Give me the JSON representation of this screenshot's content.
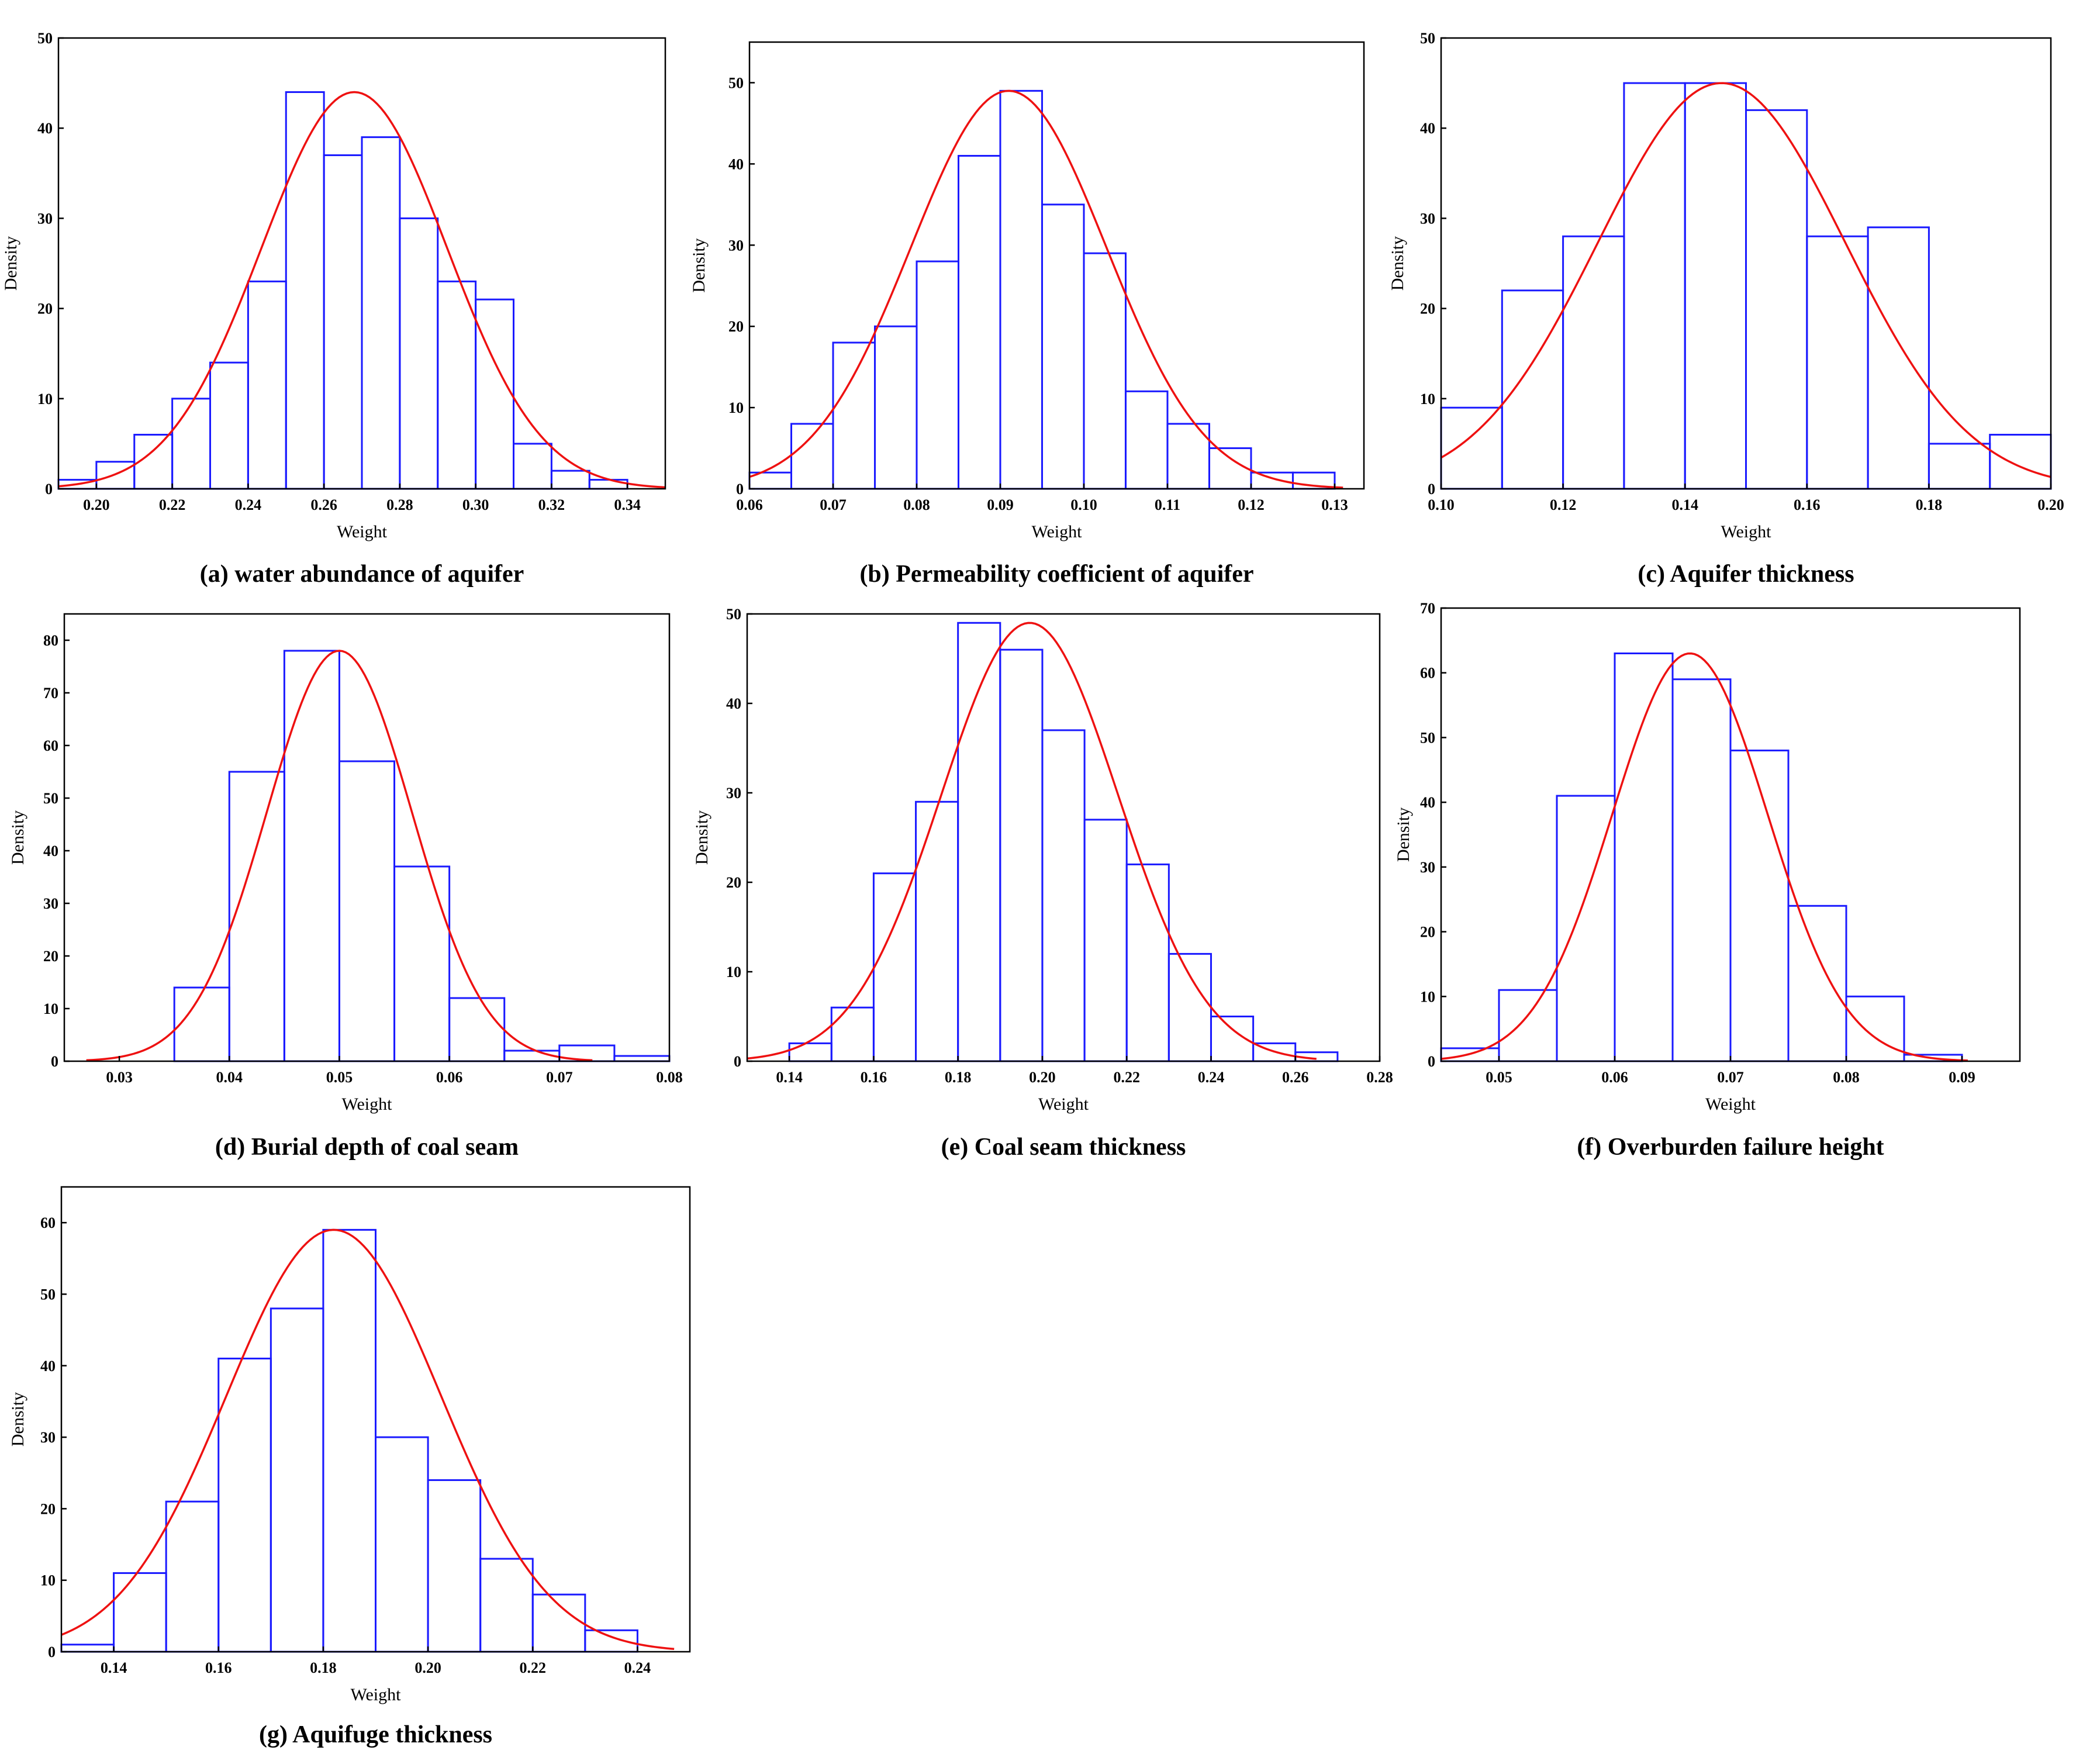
{
  "figure": {
    "x_label": "Weight",
    "y_label": "Density"
  },
  "chart_data": [
    {
      "id": "a",
      "type": "bar",
      "title": "(a) water abundance of aquifer",
      "xlabel": "Weight",
      "ylabel": "Density",
      "xlim": [
        0.19,
        0.35
      ],
      "ylim": [
        0,
        50
      ],
      "xticks": [
        0.2,
        0.22,
        0.24,
        0.26,
        0.28,
        0.3,
        0.32,
        0.34
      ],
      "xtick_labels": [
        "0.20",
        "0.22",
        "0.24",
        "0.26",
        "0.28",
        "0.30",
        "0.32",
        "0.34"
      ],
      "yticks": [
        0,
        10,
        20,
        30,
        40,
        50
      ],
      "ytick_labels": [
        "0",
        "10",
        "20",
        "30",
        "40",
        "50"
      ],
      "bin_start": 0.19,
      "bin_width": 0.01,
      "values": [
        1,
        3,
        6,
        10,
        14,
        23,
        44,
        37,
        39,
        30,
        23,
        21,
        5,
        2,
        1
      ],
      "curve": {
        "mean": 0.268,
        "sd": 0.0245,
        "peak": 44,
        "from": 0.19,
        "to": 0.35
      }
    },
    {
      "id": "b",
      "type": "bar",
      "title": "(b) Permeability coefficient of aquifer",
      "xlabel": "Weight",
      "ylabel": "Density",
      "xlim": [
        0.06,
        0.1335
      ],
      "ylim": [
        0,
        55
      ],
      "xticks": [
        0.06,
        0.07,
        0.08,
        0.09,
        0.1,
        0.11,
        0.12,
        0.13
      ],
      "xtick_labels": [
        "0.06",
        "0.07",
        "0.08",
        "0.09",
        "0.10",
        "0.11",
        "0.12",
        "0.13"
      ],
      "yticks": [
        0,
        10,
        20,
        30,
        40,
        50
      ],
      "ytick_labels": [
        "0",
        "10",
        "20",
        "30",
        "40",
        "50"
      ],
      "bin_start": 0.06,
      "bin_width": 0.005,
      "values": [
        2,
        8,
        18,
        20,
        28,
        41,
        49,
        35,
        29,
        12,
        8,
        5,
        2,
        2
      ],
      "curve": {
        "mean": 0.091,
        "sd": 0.0117,
        "peak": 49,
        "from": 0.06,
        "to": 0.131
      }
    },
    {
      "id": "c",
      "type": "bar",
      "title": "(c) Aquifer thickness",
      "xlabel": "Weight",
      "ylabel": "Density",
      "xlim": [
        0.1,
        0.2
      ],
      "ylim": [
        0,
        50
      ],
      "xticks": [
        0.1,
        0.12,
        0.14,
        0.16,
        0.18,
        0.2
      ],
      "xtick_labels": [
        "0.10",
        "0.12",
        "0.14",
        "0.16",
        "0.18",
        "0.20"
      ],
      "yticks": [
        0,
        10,
        20,
        30,
        40,
        50
      ],
      "ytick_labels": [
        "0",
        "10",
        "20",
        "30",
        "40",
        "50"
      ],
      "bin_start": 0.1,
      "bin_width": 0.01,
      "values": [
        9,
        22,
        28,
        45,
        45,
        42,
        28,
        29,
        5,
        6
      ],
      "curve": {
        "mean": 0.146,
        "sd": 0.0203,
        "peak": 45,
        "from": 0.1,
        "to": 0.2
      }
    },
    {
      "id": "d",
      "type": "bar",
      "title": "(d) Burial depth of coal seam",
      "xlabel": "Weight",
      "ylabel": "Density",
      "xlim": [
        0.025,
        0.08
      ],
      "ylim": [
        0,
        85
      ],
      "xticks": [
        0.03,
        0.04,
        0.05,
        0.06,
        0.07,
        0.08
      ],
      "xtick_labels": [
        "0.03",
        "0.04",
        "0.05",
        "0.06",
        "0.07",
        "0.08"
      ],
      "yticks": [
        0,
        10,
        20,
        30,
        40,
        50,
        60,
        70,
        80
      ],
      "ytick_labels": [
        "0",
        "10",
        "20",
        "30",
        "40",
        "50",
        "60",
        "70",
        "80"
      ],
      "bin_start": 0.035,
      "bin_width": 0.005,
      "values": [
        14,
        55,
        78,
        57,
        37,
        12,
        2,
        3,
        1
      ],
      "curve": {
        "mean": 0.05,
        "sd": 0.0066,
        "peak": 78,
        "from": 0.027,
        "to": 0.073
      }
    },
    {
      "id": "e",
      "type": "bar",
      "title": "(e) Coal seam thickness",
      "xlabel": "Weight",
      "ylabel": "Density",
      "xlim": [
        0.13,
        0.28
      ],
      "ylim": [
        0,
        50
      ],
      "xticks": [
        0.14,
        0.16,
        0.18,
        0.2,
        0.22,
        0.24,
        0.26,
        0.28
      ],
      "xtick_labels": [
        "0.14",
        "0.16",
        "0.18",
        "0.20",
        "0.22",
        "0.24",
        "0.26",
        "0.28"
      ],
      "yticks": [
        0,
        10,
        20,
        30,
        40,
        50
      ],
      "ytick_labels": [
        "0",
        "10",
        "20",
        "30",
        "40",
        "50"
      ],
      "bin_start": 0.14,
      "bin_width": 0.01,
      "values": [
        2,
        6,
        21,
        29,
        49,
        46,
        37,
        27,
        22,
        12,
        5,
        2,
        1
      ],
      "curve": {
        "mean": 0.197,
        "sd": 0.021,
        "peak": 49,
        "from": 0.13,
        "to": 0.265
      }
    },
    {
      "id": "f",
      "type": "bar",
      "title": "(f) Overburden failure height",
      "xlabel": "Weight",
      "ylabel": "Density",
      "xlim": [
        0.045,
        0.095
      ],
      "ylim": [
        0,
        70
      ],
      "xticks": [
        0.05,
        0.06,
        0.07,
        0.08,
        0.09
      ],
      "xtick_labels": [
        "0.05",
        "0.06",
        "0.07",
        "0.08",
        "0.09"
      ],
      "yticks": [
        0,
        10,
        20,
        30,
        40,
        50,
        60,
        70
      ],
      "ytick_labels": [
        "0",
        "10",
        "20",
        "30",
        "40",
        "50",
        "60",
        "70"
      ],
      "bin_start": 0.045,
      "bin_width": 0.005,
      "values": [
        2,
        11,
        41,
        63,
        59,
        48,
        24,
        10,
        1
      ],
      "curve": {
        "mean": 0.0665,
        "sd": 0.0067,
        "peak": 63,
        "from": 0.045,
        "to": 0.0905
      }
    },
    {
      "id": "g",
      "type": "bar",
      "title": "(g) Aquifuge thickness",
      "xlabel": "Weight",
      "ylabel": "Density",
      "xlim": [
        0.13,
        0.25
      ],
      "ylim": [
        0,
        65
      ],
      "xticks": [
        0.14,
        0.16,
        0.18,
        0.2,
        0.22,
        0.24
      ],
      "xtick_labels": [
        "0.14",
        "0.16",
        "0.18",
        "0.20",
        "0.22",
        "0.24"
      ],
      "yticks": [
        0,
        10,
        20,
        30,
        40,
        50,
        60
      ],
      "ytick_labels": [
        "0",
        "10",
        "20",
        "30",
        "40",
        "50",
        "60"
      ],
      "bin_start": 0.13,
      "bin_width": 0.01,
      "values": [
        1,
        11,
        21,
        41,
        48,
        59,
        30,
        24,
        13,
        8,
        3
      ],
      "curve": {
        "mean": 0.182,
        "sd": 0.0205,
        "peak": 59,
        "from": 0.13,
        "to": 0.247
      }
    }
  ]
}
